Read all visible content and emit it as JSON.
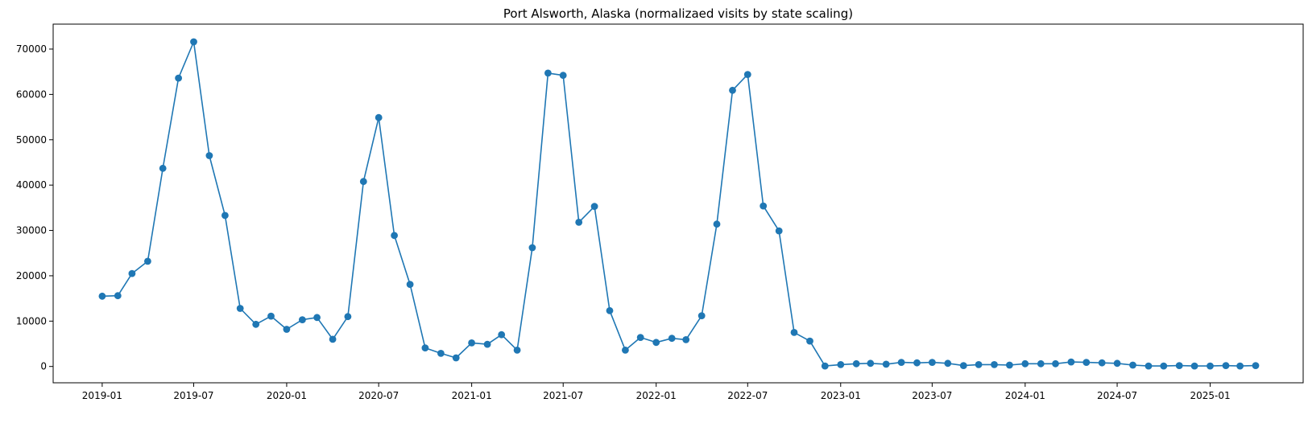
{
  "chart_data": {
    "type": "line",
    "title": "Port Alsworth, Alaska (normalizaed visits by state scaling)",
    "xlabel": "",
    "ylabel": "",
    "x_start": "2019-01",
    "xlim": [
      "2018-09-26",
      "2025-07-04"
    ],
    "ylim": [
      -3600,
      75500
    ],
    "xticks": [
      "2019-01",
      "2019-07",
      "2020-01",
      "2020-07",
      "2021-01",
      "2021-07",
      "2022-01",
      "2022-07",
      "2023-01",
      "2023-07",
      "2024-01",
      "2024-07",
      "2025-01"
    ],
    "yticks": [
      0,
      10000,
      20000,
      30000,
      40000,
      50000,
      60000,
      70000
    ],
    "grid": false,
    "marker": "circle",
    "series": [
      {
        "name": "",
        "color": "#1f77b4",
        "x": [
          "2019-01",
          "2019-02",
          "2019-03",
          "2019-04",
          "2019-05",
          "2019-06",
          "2019-07",
          "2019-08",
          "2019-09",
          "2019-10",
          "2019-11",
          "2019-12",
          "2020-01",
          "2020-02",
          "2020-03",
          "2020-04",
          "2020-05",
          "2020-06",
          "2020-07",
          "2020-08",
          "2020-09",
          "2020-10",
          "2020-11",
          "2020-12",
          "2021-01",
          "2021-02",
          "2021-03",
          "2021-04",
          "2021-05",
          "2021-06",
          "2021-07",
          "2021-08",
          "2021-09",
          "2021-10",
          "2021-11",
          "2021-12",
          "2022-01",
          "2022-02",
          "2022-03",
          "2022-04",
          "2022-05",
          "2022-06",
          "2022-07",
          "2022-08",
          "2022-09",
          "2022-10",
          "2022-11",
          "2022-12",
          "2023-01",
          "2023-02",
          "2023-03",
          "2023-04",
          "2023-05",
          "2023-06",
          "2023-07",
          "2023-08",
          "2023-09",
          "2023-10",
          "2023-11",
          "2023-12",
          "2024-01",
          "2024-02",
          "2024-03",
          "2024-04",
          "2024-05",
          "2024-06",
          "2024-07",
          "2024-08",
          "2024-09",
          "2024-10",
          "2024-11",
          "2024-12",
          "2025-01",
          "2025-02",
          "2025-03",
          "2025-04"
        ],
        "values": [
          15500,
          15600,
          20500,
          23200,
          43700,
          63600,
          71600,
          46500,
          33300,
          12800,
          9300,
          11100,
          8200,
          10300,
          10800,
          6000,
          11000,
          40800,
          54900,
          28900,
          18100,
          4100,
          2900,
          1900,
          5200,
          4900,
          7000,
          3600,
          26200,
          64700,
          64200,
          31800,
          35300,
          12300,
          3600,
          6400,
          5300,
          6200,
          5900,
          11200,
          31400,
          60900,
          64400,
          35400,
          29900,
          7500,
          5600,
          100,
          400,
          600,
          700,
          500,
          900,
          800,
          900,
          700,
          200,
          400,
          400,
          300,
          600,
          600,
          600,
          1000,
          900,
          800,
          700,
          300,
          100,
          100,
          200,
          100,
          100,
          200,
          100,
          200
        ]
      }
    ]
  }
}
